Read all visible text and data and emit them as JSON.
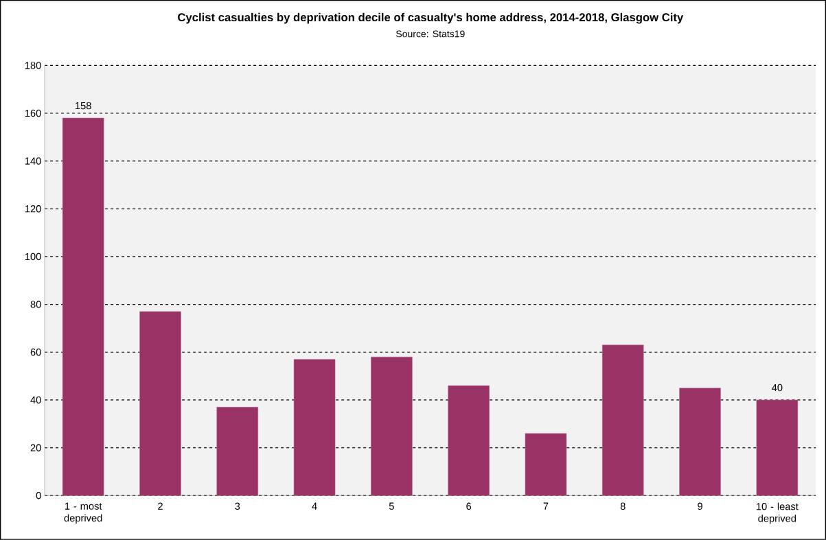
{
  "chart_data": {
    "type": "bar",
    "title": "Cyclist casualties by deprivation decile of casualty's home address, 2014-2018, Glasgow City",
    "subtitle": "Source: Stats19",
    "categories": [
      "1 - most deprived",
      "2",
      "3",
      "4",
      "5",
      "6",
      "7",
      "8",
      "9",
      "10 - least deprived"
    ],
    "values": [
      158,
      77,
      37,
      57,
      58,
      46,
      26,
      63,
      45,
      40
    ],
    "value_labels": [
      "158",
      null,
      null,
      null,
      null,
      null,
      null,
      null,
      null,
      "40"
    ],
    "color": "#993366",
    "ylim": [
      0,
      180
    ],
    "yticks": [
      0,
      20,
      40,
      60,
      80,
      100,
      120,
      140,
      160,
      180
    ],
    "grid": "y"
  }
}
